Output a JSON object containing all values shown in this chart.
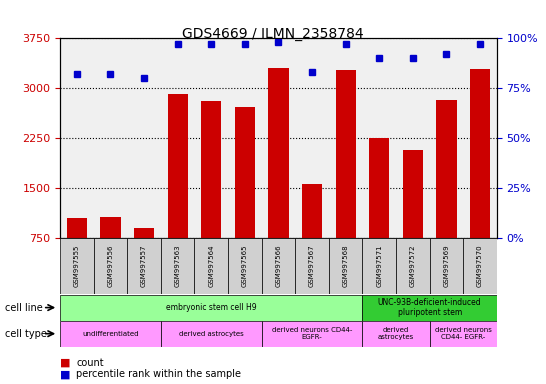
{
  "title": "GDS4669 / ILMN_2358784",
  "samples": [
    "GSM997555",
    "GSM997556",
    "GSM997557",
    "GSM997563",
    "GSM997564",
    "GSM997565",
    "GSM997566",
    "GSM997567",
    "GSM997568",
    "GSM997571",
    "GSM997572",
    "GSM997569",
    "GSM997570"
  ],
  "counts": [
    1050,
    1060,
    900,
    2920,
    2810,
    2720,
    3310,
    1570,
    3280,
    2250,
    2080,
    2830,
    3290
  ],
  "percentiles": [
    82,
    82,
    80,
    97,
    97,
    97,
    98,
    83,
    97,
    90,
    90,
    92,
    97
  ],
  "bar_color": "#cc0000",
  "dot_color": "#0000cc",
  "ylim_left": [
    750,
    3750
  ],
  "ylim_right": [
    0,
    100
  ],
  "yticks_left": [
    750,
    1500,
    2250,
    3000,
    3750
  ],
  "yticks_right": [
    0,
    25,
    50,
    75,
    100
  ],
  "cell_line_groups": [
    {
      "label": "embryonic stem cell H9",
      "start": 0,
      "end": 9,
      "color": "#99ff99"
    },
    {
      "label": "UNC-93B-deficient-induced\npluripotent stem",
      "start": 9,
      "end": 13,
      "color": "#33cc33"
    }
  ],
  "cell_type_groups": [
    {
      "label": "undifferentiated",
      "start": 0,
      "end": 3,
      "color": "#ff99ff"
    },
    {
      "label": "derived astrocytes",
      "start": 3,
      "end": 6,
      "color": "#ff99ff"
    },
    {
      "label": "derived neurons CD44-\nEGFR-",
      "start": 6,
      "end": 9,
      "color": "#ff99ff"
    },
    {
      "label": "derived\nastrocytes",
      "start": 9,
      "end": 11,
      "color": "#ff99ff"
    },
    {
      "label": "derived neurons\nCD44- EGFR-",
      "start": 11,
      "end": 13,
      "color": "#ff99ff"
    }
  ],
  "xlabel_fontsize": 6.5,
  "tick_color_left": "#cc0000",
  "tick_color_right": "#0000cc",
  "background_color": "#ffffff",
  "grid_color": "#000000"
}
